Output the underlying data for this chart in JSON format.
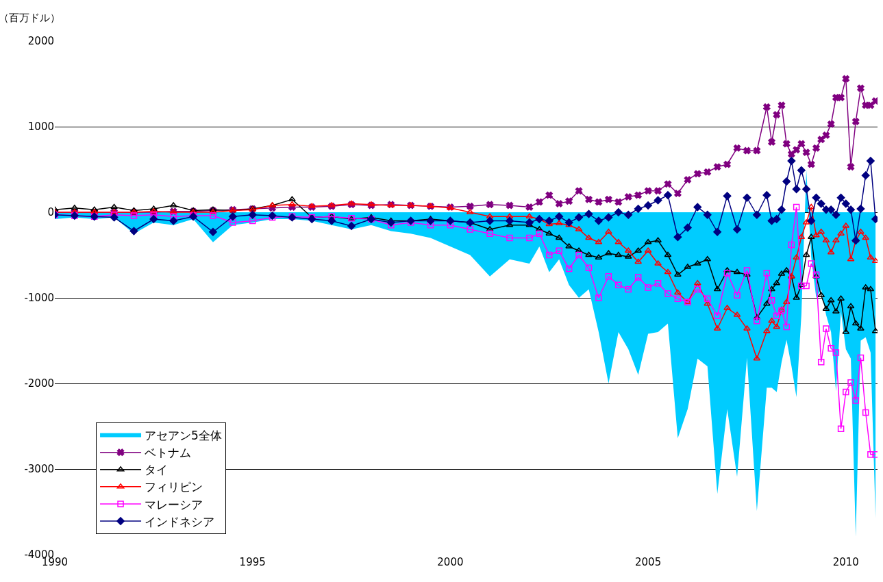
{
  "chart_data": {
    "type": "line",
    "ylabel": "（百万ドル）",
    "x": [
      1990.0,
      1990.5,
      1991.0,
      1991.5,
      1992.0,
      1992.5,
      1993.0,
      1993.5,
      1994.0,
      1994.5,
      1995.0,
      1995.5,
      1996.0,
      1996.5,
      1997.0,
      1997.5,
      1998.0,
      1998.5,
      1999.0,
      1999.5,
      2000.0,
      2000.5,
      2001.0,
      2001.5,
      2002.0,
      2002.25,
      2002.5,
      2002.75,
      2003.0,
      2003.25,
      2003.5,
      2003.75,
      2004.0,
      2004.25,
      2004.5,
      2004.75,
      2005.0,
      2005.25,
      2005.5,
      2005.75,
      2006.0,
      2006.25,
      2006.5,
      2006.75,
      2007.0,
      2007.25,
      2007.5,
      2007.75,
      2008.0,
      2008.125,
      2008.25,
      2008.375,
      2008.5,
      2008.625,
      2008.75,
      2008.875,
      2009.0,
      2009.125,
      2009.25,
      2009.375,
      2009.5,
      2009.625,
      2009.75,
      2009.875,
      2010.0,
      2010.125,
      2010.25,
      2010.375,
      2010.5,
      2010.625,
      2010.75
    ],
    "series": [
      {
        "name": "アセアン5全体",
        "type": "area",
        "color": "#00ccff",
        "values": [
          -80,
          -60,
          -80,
          -60,
          -250,
          -120,
          -150,
          -80,
          -350,
          -150,
          -120,
          -80,
          -80,
          -100,
          -150,
          -200,
          -150,
          -220,
          -250,
          -300,
          -400,
          -500,
          -750,
          -550,
          -600,
          -400,
          -700,
          -550,
          -850,
          -1000,
          -900,
          -1400,
          -2000,
          -1400,
          -1600,
          -1900,
          -1420,
          -1400,
          -1300,
          -2640,
          -2300,
          -1710,
          -1800,
          -3290,
          -2300,
          -3090,
          -1700,
          -3490,
          -2050,
          -2050,
          -2100,
          -1750,
          -1490,
          -1800,
          -2160,
          -1200,
          490,
          -530,
          -1000,
          -900,
          -1200,
          -1400,
          -2090,
          -1160,
          -1600,
          -1710,
          -3790,
          -1500,
          -1460,
          -1640,
          -3570
        ]
      },
      {
        "name": "ベトナム",
        "color": "#800080",
        "marker": "cross",
        "values": [
          0,
          0,
          0,
          0,
          0,
          0,
          10,
          10,
          20,
          30,
          40,
          50,
          60,
          60,
          70,
          90,
          80,
          90,
          80,
          70,
          60,
          70,
          90,
          80,
          60,
          120,
          200,
          100,
          130,
          250,
          150,
          120,
          150,
          120,
          180,
          200,
          250,
          250,
          330,
          220,
          380,
          450,
          470,
          530,
          560,
          750,
          720,
          720,
          1230,
          820,
          1140,
          1250,
          800,
          680,
          730,
          800,
          700,
          560,
          750,
          850,
          900,
          1030,
          1340,
          1340,
          1560,
          530,
          1060,
          1450,
          1250,
          1250,
          1300
        ]
      },
      {
        "name": "タイ",
        "color": "#000000",
        "marker": "triangle",
        "values": [
          30,
          50,
          30,
          60,
          20,
          40,
          80,
          20,
          30,
          20,
          40,
          80,
          150,
          -60,
          -50,
          -80,
          -60,
          -100,
          -100,
          -80,
          -100,
          -120,
          -200,
          -150,
          -150,
          -200,
          -250,
          -300,
          -400,
          -450,
          -500,
          -530,
          -480,
          -500,
          -520,
          -450,
          -350,
          -330,
          -500,
          -730,
          -640,
          -600,
          -550,
          -900,
          -680,
          -700,
          -730,
          -1230,
          -1070,
          -900,
          -830,
          -720,
          -680,
          -750,
          -1000,
          -850,
          -500,
          -290,
          -750,
          -970,
          -1130,
          -1030,
          -1160,
          -1010,
          -1400,
          -1100,
          -1300,
          -1360,
          -880,
          -900,
          -1390
        ]
      },
      {
        "name": "フィリピン",
        "color": "#ff0000",
        "marker": "triangle",
        "values": [
          0,
          0,
          0,
          0,
          0,
          10,
          0,
          0,
          0,
          20,
          30,
          80,
          90,
          70,
          80,
          100,
          90,
          80,
          80,
          70,
          50,
          0,
          -50,
          -50,
          -50,
          -80,
          -140,
          -130,
          -150,
          -200,
          -300,
          -350,
          -230,
          -350,
          -450,
          -580,
          -450,
          -600,
          -700,
          -940,
          -1050,
          -830,
          -1070,
          -1360,
          -1120,
          -1200,
          -1360,
          -1710,
          -1390,
          -1270,
          -1340,
          -1140,
          -1050,
          -750,
          -530,
          -290,
          -120,
          60,
          -270,
          -230,
          -330,
          -470,
          -330,
          -250,
          -160,
          -550,
          -330,
          -230,
          -300,
          -530,
          -570
        ]
      },
      {
        "name": "マレーシア",
        "color": "#ff00ff",
        "marker": "square",
        "values": [
          -30,
          -40,
          -50,
          -30,
          -40,
          -30,
          -50,
          -40,
          -40,
          -120,
          -100,
          -60,
          -50,
          -60,
          -50,
          -70,
          -80,
          -150,
          -120,
          -150,
          -150,
          -200,
          -250,
          -300,
          -300,
          -250,
          -500,
          -450,
          -660,
          -500,
          -650,
          -1000,
          -750,
          -850,
          -900,
          -760,
          -880,
          -830,
          -950,
          -1010,
          -1050,
          -900,
          -1010,
          -1210,
          -710,
          -970,
          -680,
          -1270,
          -710,
          -1030,
          -1210,
          -1150,
          -1340,
          -380,
          60,
          -860,
          -860,
          -600,
          -730,
          -1750,
          -1360,
          -1590,
          -1640,
          -2530,
          -2100,
          -1990,
          -2200,
          -1700,
          -2340,
          -2830,
          -2830
        ]
      },
      {
        "name": "インドネシア",
        "color": "#000080",
        "marker": "diamond",
        "values": [
          -30,
          -40,
          -50,
          -60,
          -220,
          -80,
          -100,
          -50,
          -230,
          -50,
          -30,
          -40,
          -60,
          -80,
          -100,
          -160,
          -80,
          -120,
          -100,
          -100,
          -100,
          -120,
          -100,
          -100,
          -120,
          -80,
          -100,
          -50,
          -120,
          -60,
          -20,
          -100,
          -60,
          0,
          -30,
          40,
          80,
          140,
          200,
          -290,
          -180,
          60,
          -30,
          -230,
          190,
          -200,
          170,
          -30,
          200,
          -100,
          -80,
          30,
          360,
          600,
          270,
          490,
          270,
          -100,
          170,
          100,
          30,
          30,
          -30,
          170,
          100,
          30,
          -330,
          40,
          430,
          600,
          -80
        ]
      }
    ],
    "xlim": [
      1990,
      2010.8
    ],
    "xticks": [
      1990,
      1995,
      2000,
      2005,
      2010
    ],
    "ylim": [
      -4000,
      2000
    ],
    "yticks": [
      -4000,
      -3000,
      -2000,
      -1000,
      0,
      1000,
      2000
    ],
    "grid": "y",
    "legend": "bottom left"
  }
}
